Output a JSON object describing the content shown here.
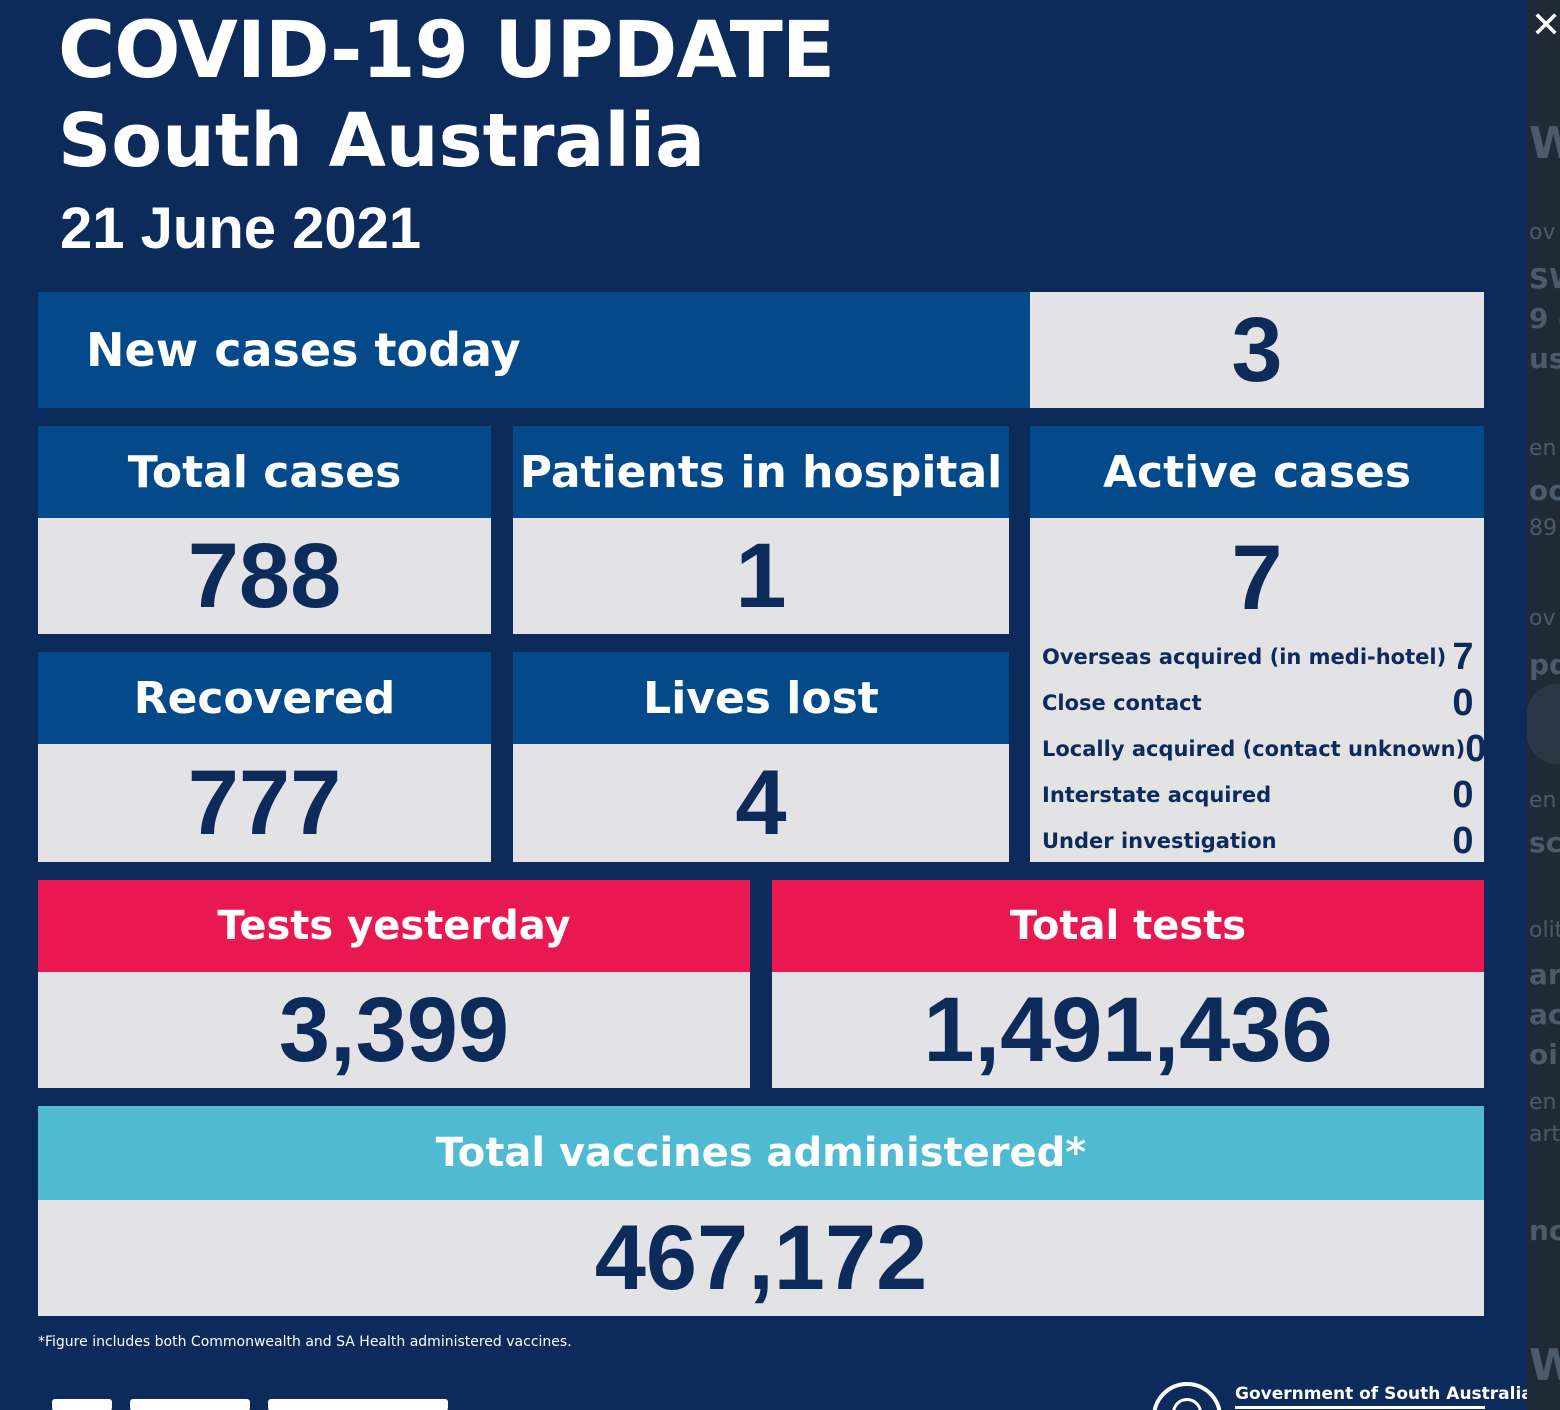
{
  "header": {
    "title": "COVID-19 UPDATE",
    "region": "South Australia",
    "date": "21 June 2021"
  },
  "new_cases": {
    "label": "New cases today",
    "value": "3"
  },
  "total_cases": {
    "label": "Total cases",
    "value": "788"
  },
  "hospital": {
    "label": "Patients in hospital",
    "value": "1"
  },
  "active": {
    "label": "Active cases",
    "value": "7",
    "breakdown": [
      {
        "label": "Overseas acquired (in medi-hotel)",
        "value": "7"
      },
      {
        "label": "Close contact",
        "value": "0"
      },
      {
        "label": "Locally acquired (contact unknown)",
        "value": "0"
      },
      {
        "label": "Interstate acquired",
        "value": "0"
      },
      {
        "label": "Under investigation",
        "value": "0"
      }
    ]
  },
  "recovered": {
    "label": "Recovered",
    "value": "777"
  },
  "lives_lost": {
    "label": "Lives lost",
    "value": "4"
  },
  "tests_yesterday": {
    "label": "Tests yesterday",
    "value": "3,399"
  },
  "total_tests": {
    "label": "Total tests",
    "value": "1,491,436"
  },
  "vaccines": {
    "label": "Total vaccines administered*",
    "value": "467,172"
  },
  "footnote": "*Figure includes both Commonwealth and SA Health administered vaccines.",
  "government": "Government of South Australia",
  "colors": {
    "background": "#0c2a5a",
    "header_blue": "#04498a",
    "value_grey": "#e3e3e6",
    "tests_red": "#ea1850",
    "vaccine_teal": "#4fbad1"
  },
  "side_panel": {
    "close_icon": "close-icon"
  }
}
